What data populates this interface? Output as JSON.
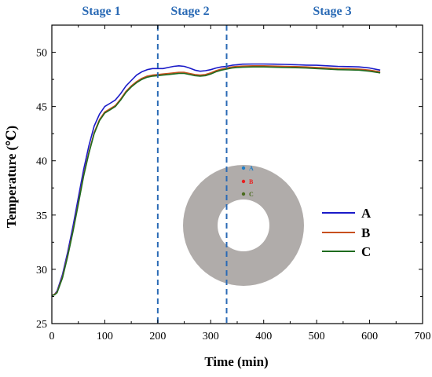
{
  "chart_data": {
    "type": "line",
    "xlabel": "Time (min)",
    "ylabel": "Temperature (℃)",
    "xlim": [
      0,
      700
    ],
    "ylim": [
      25,
      52.5
    ],
    "x_ticks": [
      "0",
      "100",
      "200",
      "300",
      "400",
      "500",
      "600",
      "700"
    ],
    "y_ticks": [
      "25",
      "30",
      "35",
      "40",
      "45",
      "50"
    ],
    "grid": false,
    "legend_position": "right",
    "stage_boundaries": [
      200,
      330
    ],
    "stage_color": "#2a6ab5",
    "stages": [
      {
        "label": "Stage 1"
      },
      {
        "label": "Stage 2"
      },
      {
        "label": "Stage 3"
      }
    ],
    "series": [
      {
        "name": "A",
        "color": "#1a1ac8",
        "x": [
          0,
          5,
          10,
          20,
          30,
          40,
          50,
          60,
          70,
          80,
          90,
          100,
          110,
          120,
          130,
          140,
          150,
          160,
          170,
          180,
          190,
          200,
          210,
          220,
          230,
          240,
          250,
          260,
          270,
          280,
          290,
          300,
          310,
          320,
          330,
          340,
          350,
          360,
          380,
          400,
          420,
          440,
          460,
          480,
          500,
          520,
          540,
          560,
          580,
          600,
          620
        ],
        "y": [
          27.6,
          27.7,
          28.0,
          29.5,
          31.6,
          34.0,
          36.6,
          39.2,
          41.4,
          43.2,
          44.3,
          45.0,
          45.3,
          45.6,
          46.2,
          46.9,
          47.4,
          47.9,
          48.2,
          48.4,
          48.5,
          48.5,
          48.5,
          48.6,
          48.7,
          48.75,
          48.7,
          48.55,
          48.35,
          48.25,
          48.3,
          48.4,
          48.55,
          48.65,
          48.7,
          48.8,
          48.85,
          48.9,
          48.92,
          48.92,
          48.9,
          48.88,
          48.85,
          48.82,
          48.8,
          48.75,
          48.7,
          48.68,
          48.65,
          48.55,
          48.35
        ]
      },
      {
        "name": "B",
        "color": "#c8501e",
        "x": [
          0,
          5,
          10,
          20,
          30,
          40,
          50,
          60,
          70,
          80,
          90,
          100,
          110,
          120,
          130,
          140,
          150,
          160,
          170,
          180,
          190,
          200,
          210,
          220,
          230,
          240,
          250,
          260,
          270,
          280,
          290,
          300,
          310,
          320,
          330,
          340,
          350,
          360,
          380,
          400,
          420,
          440,
          460,
          480,
          500,
          520,
          540,
          560,
          580,
          600,
          620
        ],
        "y": [
          27.6,
          27.7,
          27.9,
          29.3,
          31.3,
          33.6,
          36.1,
          38.7,
          40.8,
          42.6,
          43.8,
          44.5,
          44.8,
          45.1,
          45.7,
          46.4,
          46.9,
          47.3,
          47.6,
          47.8,
          47.9,
          47.95,
          48.0,
          48.05,
          48.1,
          48.15,
          48.15,
          48.05,
          47.95,
          47.9,
          47.95,
          48.1,
          48.3,
          48.45,
          48.55,
          48.65,
          48.7,
          48.72,
          48.75,
          48.75,
          48.72,
          48.7,
          48.68,
          48.65,
          48.6,
          48.55,
          48.5,
          48.48,
          48.45,
          48.35,
          48.2
        ]
      },
      {
        "name": "C",
        "color": "#1e6b1e",
        "x": [
          0,
          5,
          10,
          20,
          30,
          40,
          50,
          60,
          70,
          80,
          90,
          100,
          110,
          120,
          130,
          140,
          150,
          160,
          170,
          180,
          190,
          200,
          210,
          220,
          230,
          240,
          250,
          260,
          270,
          280,
          290,
          300,
          310,
          320,
          330,
          340,
          350,
          360,
          380,
          400,
          420,
          440,
          460,
          480,
          500,
          520,
          540,
          560,
          580,
          600,
          620
        ],
        "y": [
          27.6,
          27.65,
          27.85,
          29.2,
          31.2,
          33.5,
          36.0,
          38.6,
          40.7,
          42.5,
          43.7,
          44.4,
          44.7,
          45.0,
          45.6,
          46.3,
          46.8,
          47.2,
          47.5,
          47.7,
          47.8,
          47.85,
          47.9,
          47.95,
          48.0,
          48.05,
          48.05,
          47.95,
          47.85,
          47.8,
          47.85,
          48.0,
          48.2,
          48.35,
          48.45,
          48.55,
          48.6,
          48.62,
          48.65,
          48.65,
          48.62,
          48.6,
          48.58,
          48.55,
          48.5,
          48.45,
          48.4,
          48.38,
          48.35,
          48.25,
          48.1
        ]
      }
    ],
    "inset": {
      "ring_color": "#b0acaa",
      "points": [
        {
          "label": "A",
          "color": "#1e7ec8"
        },
        {
          "label": "B",
          "color": "#e82020"
        },
        {
          "label": "C",
          "color": "#4a6a1e"
        }
      ]
    }
  }
}
